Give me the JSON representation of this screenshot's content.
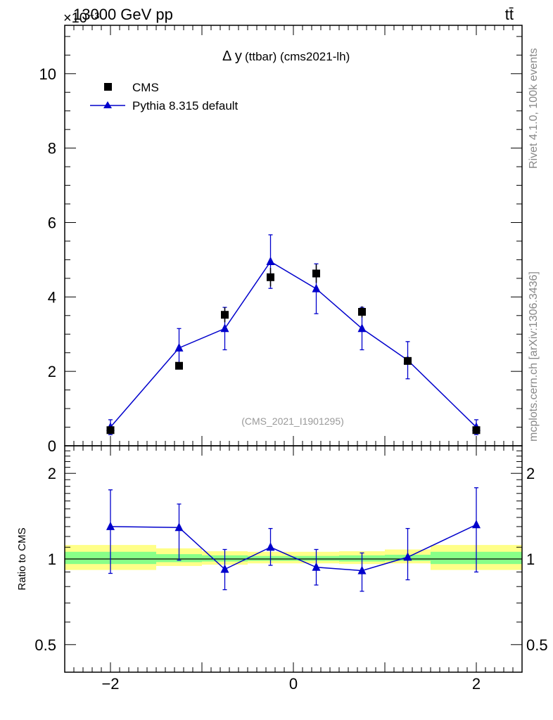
{
  "header": {
    "energy": "13000 GeV pp",
    "process": "tt̄",
    "multiplier": "×10⁻³",
    "rivet_label": "Rivet 4.1.0,  100k events",
    "mcplots_label": "mcplots.cern.ch [arXiv:1306.3436]",
    "analysis_id": "(CMS_2021_I1901295)"
  },
  "colors": {
    "data": "#000000",
    "mc": "#0000cc",
    "band_outer": "#ffff88",
    "band_inner": "#88ff88"
  },
  "chart_data": [
    {
      "type": "scatter",
      "panel": "main",
      "title": "Δ y(ttbar) (cms2021-lh)",
      "title_symbol": "Δ y",
      "title_rest": "(ttbar) (cms2021-lh)",
      "xlabel": "",
      "ylabel": "",
      "xlim": [
        -2.5,
        2.5
      ],
      "ylim": [
        0,
        11.3
      ],
      "y_scale_factor": "1e-3",
      "yticks": [
        0,
        2,
        4,
        6,
        8,
        10
      ],
      "ytick_labels": [
        "0",
        "2",
        "4",
        "6",
        "8",
        "10"
      ],
      "legend": [
        "CMS",
        "Pythia 8.315 default"
      ],
      "legend_position": "top-left",
      "series": [
        {
          "name": "CMS",
          "marker": "square",
          "x": [
            -2.0,
            -1.25,
            -0.75,
            -0.25,
            0.25,
            0.75,
            1.25,
            2.0
          ],
          "y": [
            0.42,
            2.15,
            3.52,
            4.53,
            4.63,
            3.6,
            2.28,
            0.42
          ],
          "yerr": [
            0.05,
            0.1,
            0.2,
            0.25,
            0.25,
            0.15,
            0.08,
            0.05
          ]
        },
        {
          "name": "Pythia 8.315 default",
          "marker": "triangle",
          "line": true,
          "x": [
            -2.0,
            -1.25,
            -0.75,
            -0.25,
            0.25,
            0.75,
            1.25,
            2.0
          ],
          "y": [
            0.5,
            2.63,
            3.15,
            4.95,
            4.22,
            3.15,
            2.3,
            0.5
          ],
          "yerr": [
            0.2,
            0.52,
            0.57,
            0.72,
            0.67,
            0.57,
            0.5,
            0.2
          ]
        }
      ]
    },
    {
      "type": "scatter",
      "panel": "ratio",
      "ylabel": "Ratio to CMS",
      "xlim": [
        -2.5,
        2.5
      ],
      "ylim": [
        0.4,
        2.5
      ],
      "y_scale": "log",
      "xticks": [
        -2,
        0,
        2
      ],
      "xtick_labels": [
        "−2",
        "0",
        "2"
      ],
      "yticks": [
        0.5,
        1,
        2
      ],
      "ytick_labels": [
        "0.5",
        "1",
        "2"
      ],
      "bands": {
        "bin_edges": [
          -2.5,
          -1.5,
          -1.0,
          -0.5,
          0.0,
          0.5,
          1.0,
          1.5,
          2.5
        ],
        "outer_low": [
          0.915,
          0.945,
          0.955,
          0.965,
          0.965,
          0.96,
          0.965,
          0.915
        ],
        "outer_high": [
          1.12,
          1.09,
          1.065,
          1.06,
          1.06,
          1.065,
          1.08,
          1.12
        ],
        "inner_low": [
          0.96,
          0.975,
          0.98,
          0.985,
          0.985,
          0.98,
          0.985,
          0.96
        ],
        "inner_high": [
          1.06,
          1.04,
          1.03,
          1.025,
          1.025,
          1.03,
          1.035,
          1.06
        ]
      },
      "series": [
        {
          "name": "Pythia 8.315 default",
          "x": [
            -2.0,
            -1.25,
            -0.75,
            -0.25,
            0.25,
            0.75,
            1.25,
            2.0
          ],
          "y": [
            1.3,
            1.29,
            0.92,
            1.1,
            0.935,
            0.91,
            1.015,
            1.32
          ],
          "err_low": [
            0.89,
            0.99,
            0.78,
            0.95,
            0.81,
            0.77,
            0.845,
            0.9
          ],
          "err_high": [
            1.75,
            1.56,
            1.08,
            1.28,
            1.08,
            1.05,
            1.28,
            1.78
          ]
        }
      ]
    }
  ]
}
